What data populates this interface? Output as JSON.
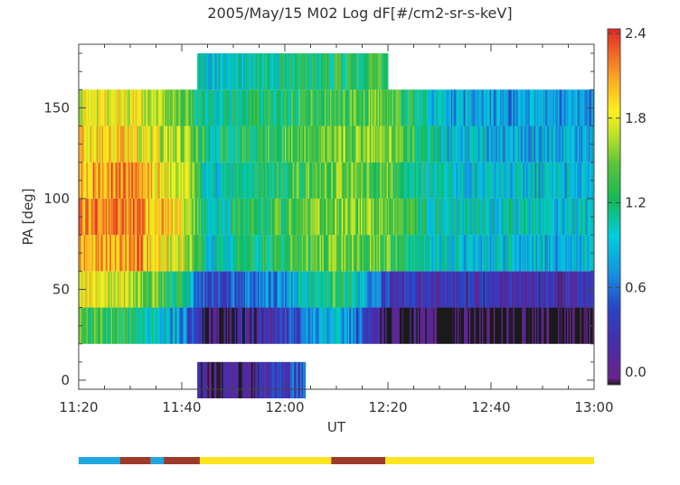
{
  "chart_data": {
    "type": "heatmap",
    "title": "2005/May/15 M02  Log dF[#/cm2-sr-s-keV]",
    "xlabel": "UT",
    "ylabel": "PA [deg]",
    "x_range": [
      "11:20",
      "13:00"
    ],
    "ylim": [
      -5,
      185
    ],
    "x_ticks": [
      "11:20",
      "11:40",
      "12:00",
      "12:20",
      "12:40",
      "13:00"
    ],
    "y_ticks": [
      "0",
      "50",
      "100",
      "150"
    ],
    "pa_bins": [
      0,
      30,
      50,
      70,
      90,
      110,
      130,
      150,
      170
    ],
    "colorbar": {
      "min": 0.0,
      "max": 2.4,
      "ticks": [
        "0.0",
        "0.6",
        "1.2",
        "1.8",
        "2.4"
      ]
    },
    "coverage_ranges_min": [
      {
        "from": 0,
        "to": 23,
        "min_pa_bin": 30,
        "max_pa_bin": 150
      },
      {
        "from": 23,
        "to": 44,
        "min_pa_bin": 0,
        "max_pa_bin": 170
      },
      {
        "from": 44,
        "to": 60,
        "min_pa_bin": 30,
        "max_pa_bin": 170
      },
      {
        "from": 60,
        "to": 100,
        "min_pa_bin": 30,
        "max_pa_bin": 150
      }
    ],
    "profile_by_time": [
      {
        "ut": "11:20",
        "pa90": 2.1,
        "pa130": 1.9,
        "pa50": 1.8
      },
      {
        "ut": "11:30",
        "pa90": 2.2,
        "pa130": 1.9,
        "pa50": 1.7
      },
      {
        "ut": "11:40",
        "pa90": 1.8,
        "pa130": 1.6,
        "pa50": 1.2
      },
      {
        "ut": "11:45",
        "pa90": 1.1,
        "pa130": 1.2,
        "pa50": 0.4
      },
      {
        "ut": "12:00",
        "pa90": 1.4,
        "pa130": 1.4,
        "pa50": 0.8
      },
      {
        "ut": "12:10",
        "pa90": 1.6,
        "pa130": 1.5,
        "pa50": 1.4
      },
      {
        "ut": "12:20",
        "pa90": 1.5,
        "pa130": 1.6,
        "pa50": 0.4
      },
      {
        "ut": "12:30",
        "pa90": 1.1,
        "pa130": 1.0,
        "pa50": 0.3
      },
      {
        "ut": "12:40",
        "pa90": 1.0,
        "pa130": 0.9,
        "pa50": 0.3
      },
      {
        "ut": "13:00",
        "pa90": 1.0,
        "pa130": 0.9,
        "pa50": 0.3
      }
    ],
    "status_bar_segments": [
      {
        "from_min": 0,
        "to_min": 8,
        "color": "#1fa8e0"
      },
      {
        "from_min": 8,
        "to_min": 14,
        "color": "#9c3a2a"
      },
      {
        "from_min": 14,
        "to_min": 16.5,
        "color": "#1fa8e0"
      },
      {
        "from_min": 16.5,
        "to_min": 23.5,
        "color": "#9c3a2a"
      },
      {
        "from_min": 23.5,
        "to_min": 49,
        "color": "#ffe51f"
      },
      {
        "from_min": 49,
        "to_min": 59.5,
        "color": "#9c3a2a"
      },
      {
        "from_min": 59.5,
        "to_min": 100,
        "color": "#ffe51f"
      }
    ]
  }
}
